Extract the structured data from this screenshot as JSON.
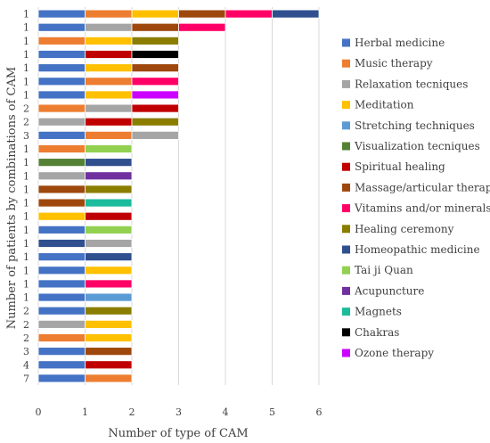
{
  "chart_data": {
    "type": "bar",
    "orientation": "horizontal",
    "stacked": true,
    "xlabel": "Number of type of CAM",
    "ylabel": "Number of patients by combinations of CAM",
    "xlim": [
      0,
      6
    ],
    "xticks": [
      0,
      1,
      2,
      3,
      4,
      5,
      6
    ],
    "grid": "vertical",
    "legend_position": "right",
    "legend": [
      {
        "name": "Herbal medicine",
        "color": "#4472C4"
      },
      {
        "name": "Music therapy",
        "color": "#ED7D31"
      },
      {
        "name": "Relaxation tecniques",
        "color": "#A5A5A5"
      },
      {
        "name": "Meditation",
        "color": "#FFC000"
      },
      {
        "name": "Stretching techniques",
        "color": "#5B9BD5"
      },
      {
        "name": "Visualization tecniques",
        "color": "#548235"
      },
      {
        "name": "Spiritual healing",
        "color": "#C00000"
      },
      {
        "name": "Massage/articular therapy",
        "color": "#9E480E"
      },
      {
        "name": "Vitamins and/or minerals",
        "color": "#FF0066"
      },
      {
        "name": "Healing ceremony",
        "color": "#8B7D00"
      },
      {
        "name": "Homeopathic medicine",
        "color": "#2F4F8F"
      },
      {
        "name": "Tai ji Quan",
        "color": "#92D050"
      },
      {
        "name": "Acupuncture",
        "color": "#7030A0"
      },
      {
        "name": "Magnets",
        "color": "#1ABC9C"
      },
      {
        "name": "Chakras",
        "color": "#000000"
      },
      {
        "name": "Ozone therapy",
        "color": "#CC00FF"
      }
    ],
    "rows": [
      {
        "patients": "1",
        "components": [
          "Herbal medicine",
          "Music therapy",
          "Meditation",
          "Massage/articular therapy",
          "Vitamins and/or minerals",
          "Homeopathic medicine"
        ]
      },
      {
        "patients": "1",
        "components": [
          "Herbal medicine",
          "Relaxation tecniques",
          "Massage/articular therapy",
          "Vitamins and/or minerals"
        ]
      },
      {
        "patients": "1",
        "components": [
          "Music therapy",
          "Meditation",
          "Healing ceremony"
        ]
      },
      {
        "patients": "1",
        "components": [
          "Herbal medicine",
          "Spiritual healing",
          "Chakras"
        ]
      },
      {
        "patients": "1",
        "components": [
          "Herbal medicine",
          "Meditation",
          "Massage/articular therapy"
        ]
      },
      {
        "patients": "1",
        "components": [
          "Herbal medicine",
          "Music therapy",
          "Vitamins and/or minerals"
        ]
      },
      {
        "patients": "1",
        "components": [
          "Herbal medicine",
          "Meditation",
          "Ozone therapy"
        ]
      },
      {
        "patients": "2",
        "components": [
          "Music therapy",
          "Relaxation tecniques",
          "Spiritual healing"
        ]
      },
      {
        "patients": "2",
        "components": [
          "Relaxation tecniques",
          "Spiritual healing",
          "Healing ceremony"
        ]
      },
      {
        "patients": "3",
        "components": [
          "Herbal medicine",
          "Music therapy",
          "Relaxation tecniques"
        ]
      },
      {
        "patients": "1",
        "components": [
          "Music therapy",
          "Tai ji Quan"
        ]
      },
      {
        "patients": "1",
        "components": [
          "Visualization tecniques",
          "Homeopathic medicine"
        ]
      },
      {
        "patients": "1",
        "components": [
          "Relaxation tecniques",
          "Acupuncture"
        ]
      },
      {
        "patients": "1",
        "components": [
          "Massage/articular therapy",
          "Healing ceremony"
        ]
      },
      {
        "patients": "1",
        "components": [
          "Massage/articular therapy",
          "Magnets"
        ]
      },
      {
        "patients": "1",
        "components": [
          "Meditation",
          "Spiritual healing"
        ]
      },
      {
        "patients": "1",
        "components": [
          "Herbal medicine",
          "Tai ji Quan"
        ]
      },
      {
        "patients": "1",
        "components": [
          "Homeopathic medicine",
          "Relaxation tecniques"
        ]
      },
      {
        "patients": "1",
        "components": [
          "Herbal medicine",
          "Homeopathic medicine"
        ]
      },
      {
        "patients": "1",
        "components": [
          "Herbal medicine",
          "Meditation"
        ]
      },
      {
        "patients": "1",
        "components": [
          "Herbal medicine",
          "Vitamins and/or minerals"
        ]
      },
      {
        "patients": "1",
        "components": [
          "Herbal medicine",
          "Stretching techniques"
        ]
      },
      {
        "patients": "2",
        "components": [
          "Herbal medicine",
          "Healing ceremony"
        ]
      },
      {
        "patients": "2",
        "components": [
          "Relaxation tecniques",
          "Meditation"
        ]
      },
      {
        "patients": "2",
        "components": [
          "Music therapy",
          "Meditation"
        ]
      },
      {
        "patients": "3",
        "components": [
          "Herbal medicine",
          "Massage/articular therapy"
        ]
      },
      {
        "patients": "4",
        "components": [
          "Herbal medicine",
          "Spiritual healing"
        ]
      },
      {
        "patients": "7",
        "components": [
          "Herbal medicine",
          "Music therapy"
        ]
      }
    ]
  }
}
